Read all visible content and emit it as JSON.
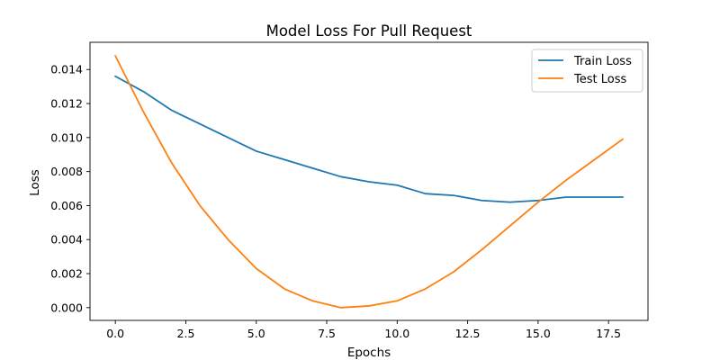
{
  "chart_data": {
    "type": "line",
    "title": "Model Loss For Pull Request",
    "xlabel": "Epochs",
    "ylabel": "Loss",
    "xlim": [
      -0.9,
      18.9
    ],
    "ylim": [
      -0.00075,
      0.0156
    ],
    "xticks": [
      0.0,
      2.5,
      5.0,
      7.5,
      10.0,
      12.5,
      15.0,
      17.5
    ],
    "xtick_labels": [
      "0.0",
      "2.5",
      "5.0",
      "7.5",
      "10.0",
      "12.5",
      "15.0",
      "17.5"
    ],
    "yticks": [
      0.0,
      0.002,
      0.004,
      0.006,
      0.008,
      0.01,
      0.012,
      0.014
    ],
    "ytick_labels": [
      "0.000",
      "0.002",
      "0.004",
      "0.006",
      "0.008",
      "0.010",
      "0.012",
      "0.014"
    ],
    "grid": false,
    "legend": "top-right",
    "x": [
      0,
      1,
      2,
      3,
      4,
      5,
      6,
      7,
      8,
      9,
      10,
      11,
      12,
      13,
      14,
      15,
      16,
      17,
      18
    ],
    "series": [
      {
        "name": "Train Loss",
        "color": "#1f77b4",
        "values": [
          0.0136,
          0.0127,
          0.0116,
          0.0108,
          0.01,
          0.0092,
          0.0087,
          0.0082,
          0.0077,
          0.0074,
          0.0072,
          0.0067,
          0.0066,
          0.0063,
          0.0062,
          0.0063,
          0.0065,
          0.0065,
          0.0065
        ]
      },
      {
        "name": "Test Loss",
        "color": "#ff7f0e",
        "values": [
          0.0148,
          0.0115,
          0.0085,
          0.006,
          0.004,
          0.0023,
          0.0011,
          0.0004,
          0.0,
          0.0001,
          0.0004,
          0.0011,
          0.0021,
          0.0034,
          0.0048,
          0.0062,
          0.0075,
          0.0087,
          0.0099
        ]
      }
    ]
  }
}
